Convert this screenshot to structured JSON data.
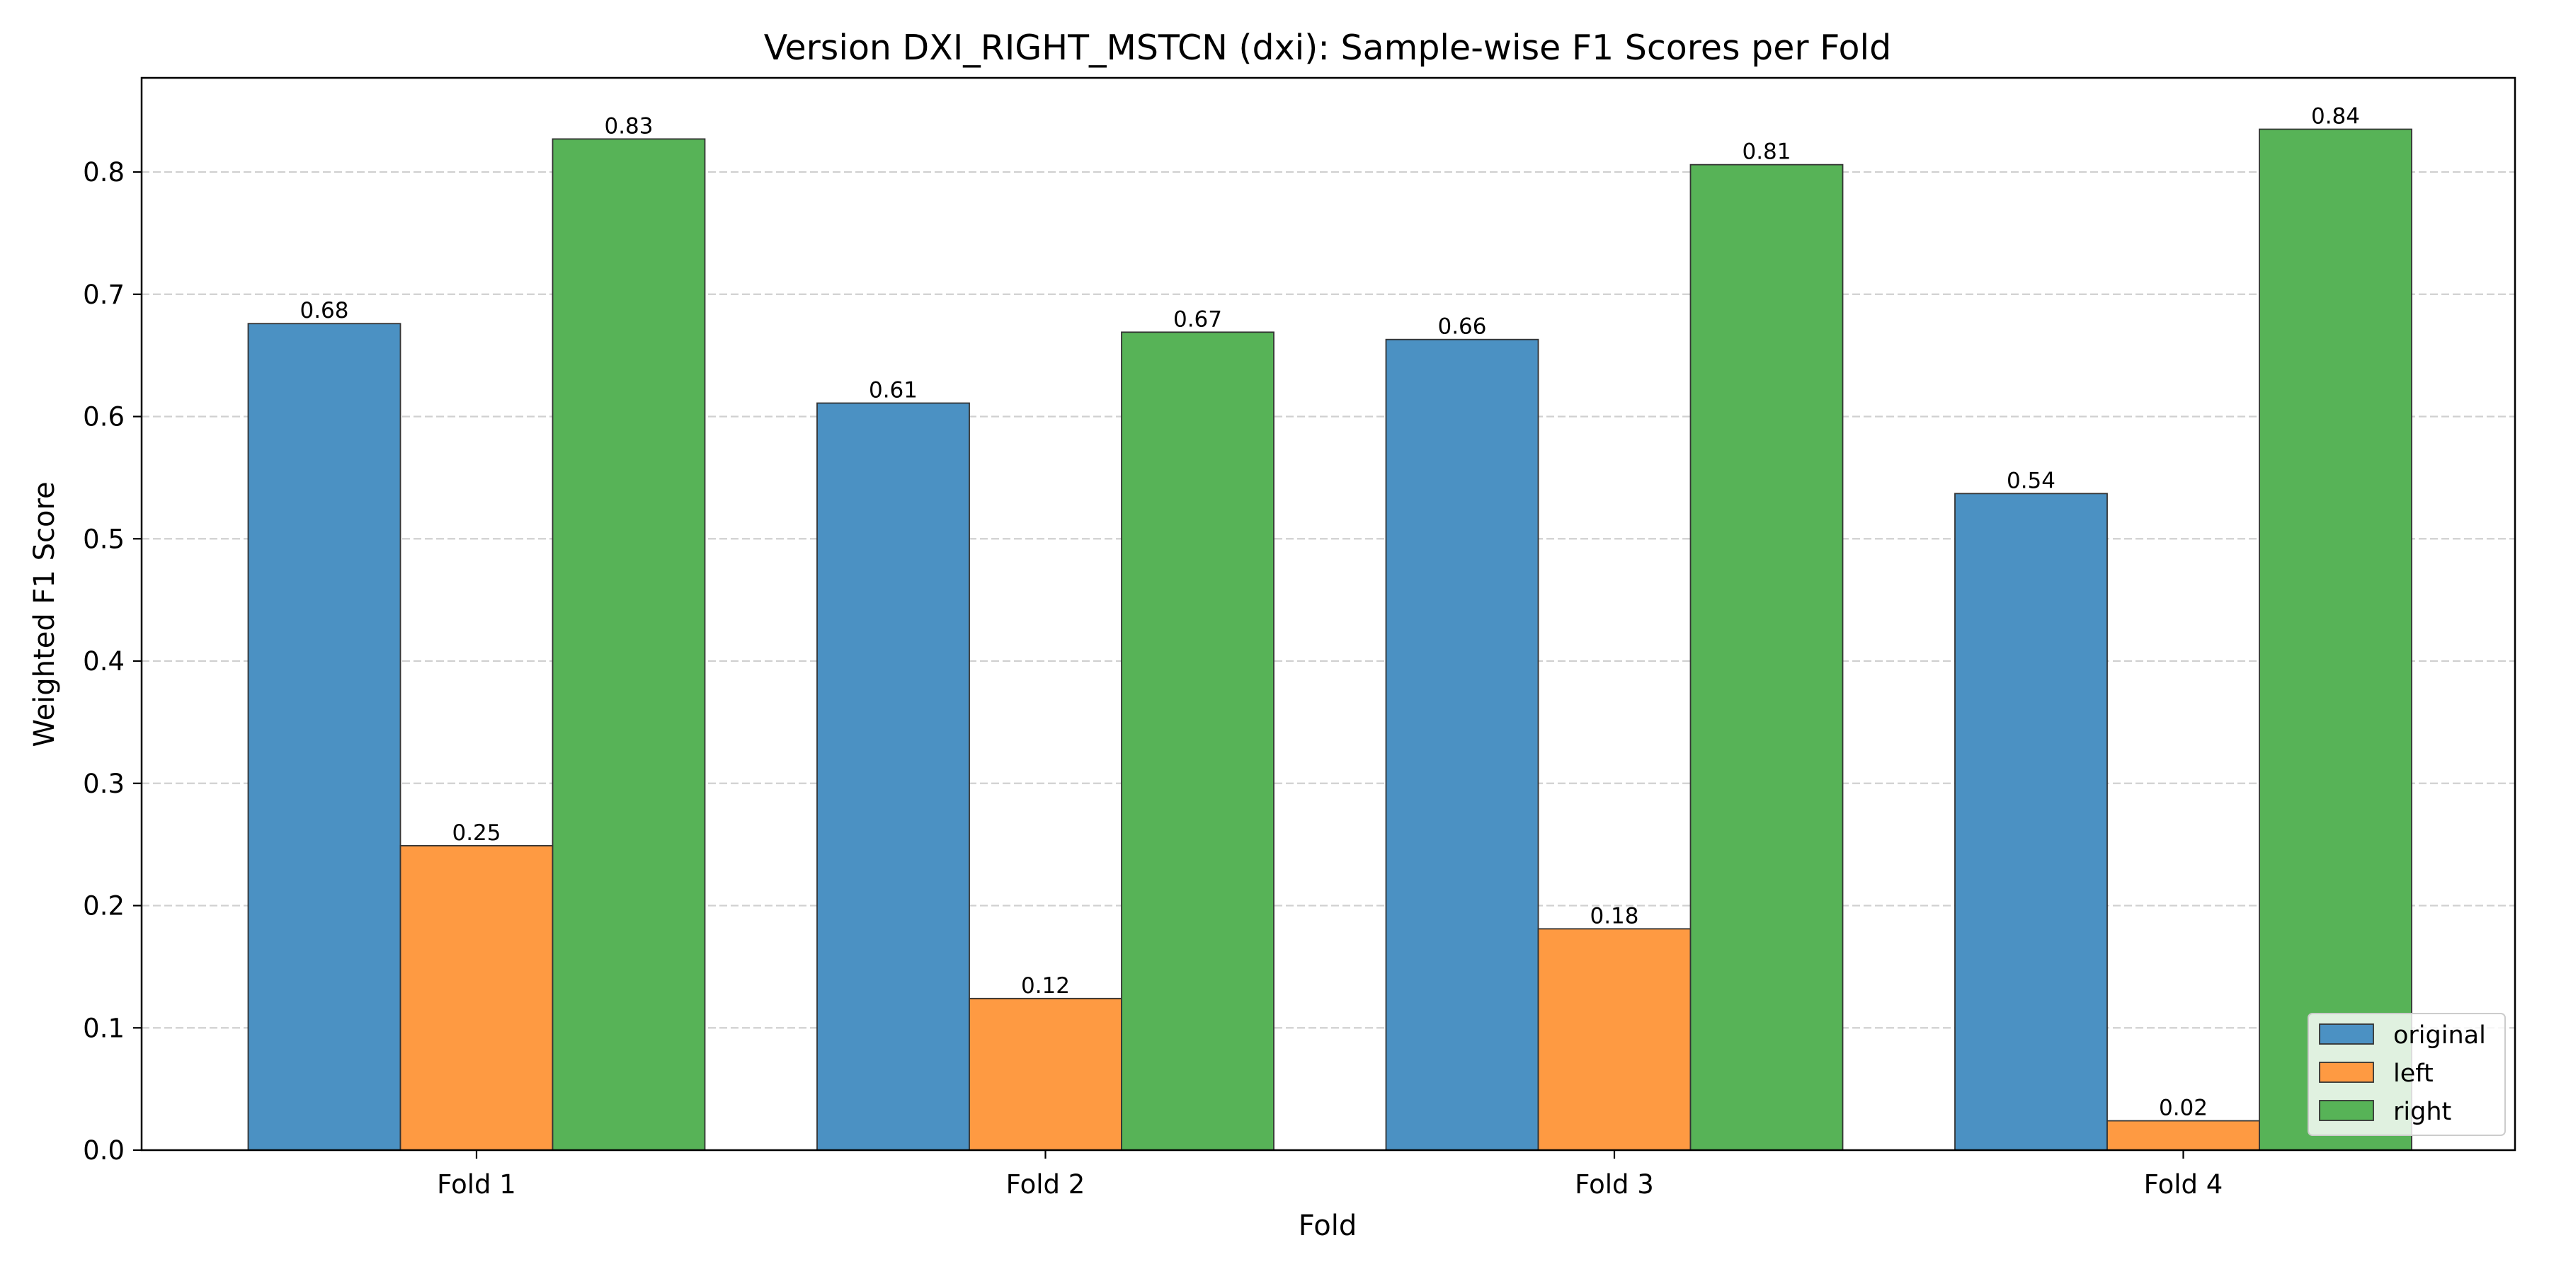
{
  "chart_data": {
    "type": "bar",
    "title": "Version DXI_RIGHT_MSTCN (dxi): Sample-wise F1 Scores per Fold",
    "xlabel": "Fold",
    "ylabel": "Weighted F1 Score",
    "categories": [
      "Fold 1",
      "Fold 2",
      "Fold 3",
      "Fold 4"
    ],
    "series": [
      {
        "name": "original",
        "color": "#4b91c3",
        "values": [
          0.676,
          0.611,
          0.663,
          0.537
        ],
        "labels": [
          "0.68",
          "0.61",
          "0.66",
          "0.54"
        ]
      },
      {
        "name": "left",
        "color": "#fe9a42",
        "values": [
          0.249,
          0.124,
          0.181,
          0.024
        ],
        "labels": [
          "0.25",
          "0.12",
          "0.18",
          "0.02"
        ]
      },
      {
        "name": "right",
        "color": "#57b357",
        "values": [
          0.827,
          0.669,
          0.806,
          0.835
        ],
        "labels": [
          "0.83",
          "0.67",
          "0.81",
          "0.84"
        ]
      }
    ],
    "ylim": [
      0,
      0.877
    ],
    "yticks": [
      "0.0",
      "0.1",
      "0.2",
      "0.3",
      "0.4",
      "0.5",
      "0.6",
      "0.7",
      "0.8"
    ],
    "grid": "y, dashed",
    "legend": "lower-right"
  }
}
